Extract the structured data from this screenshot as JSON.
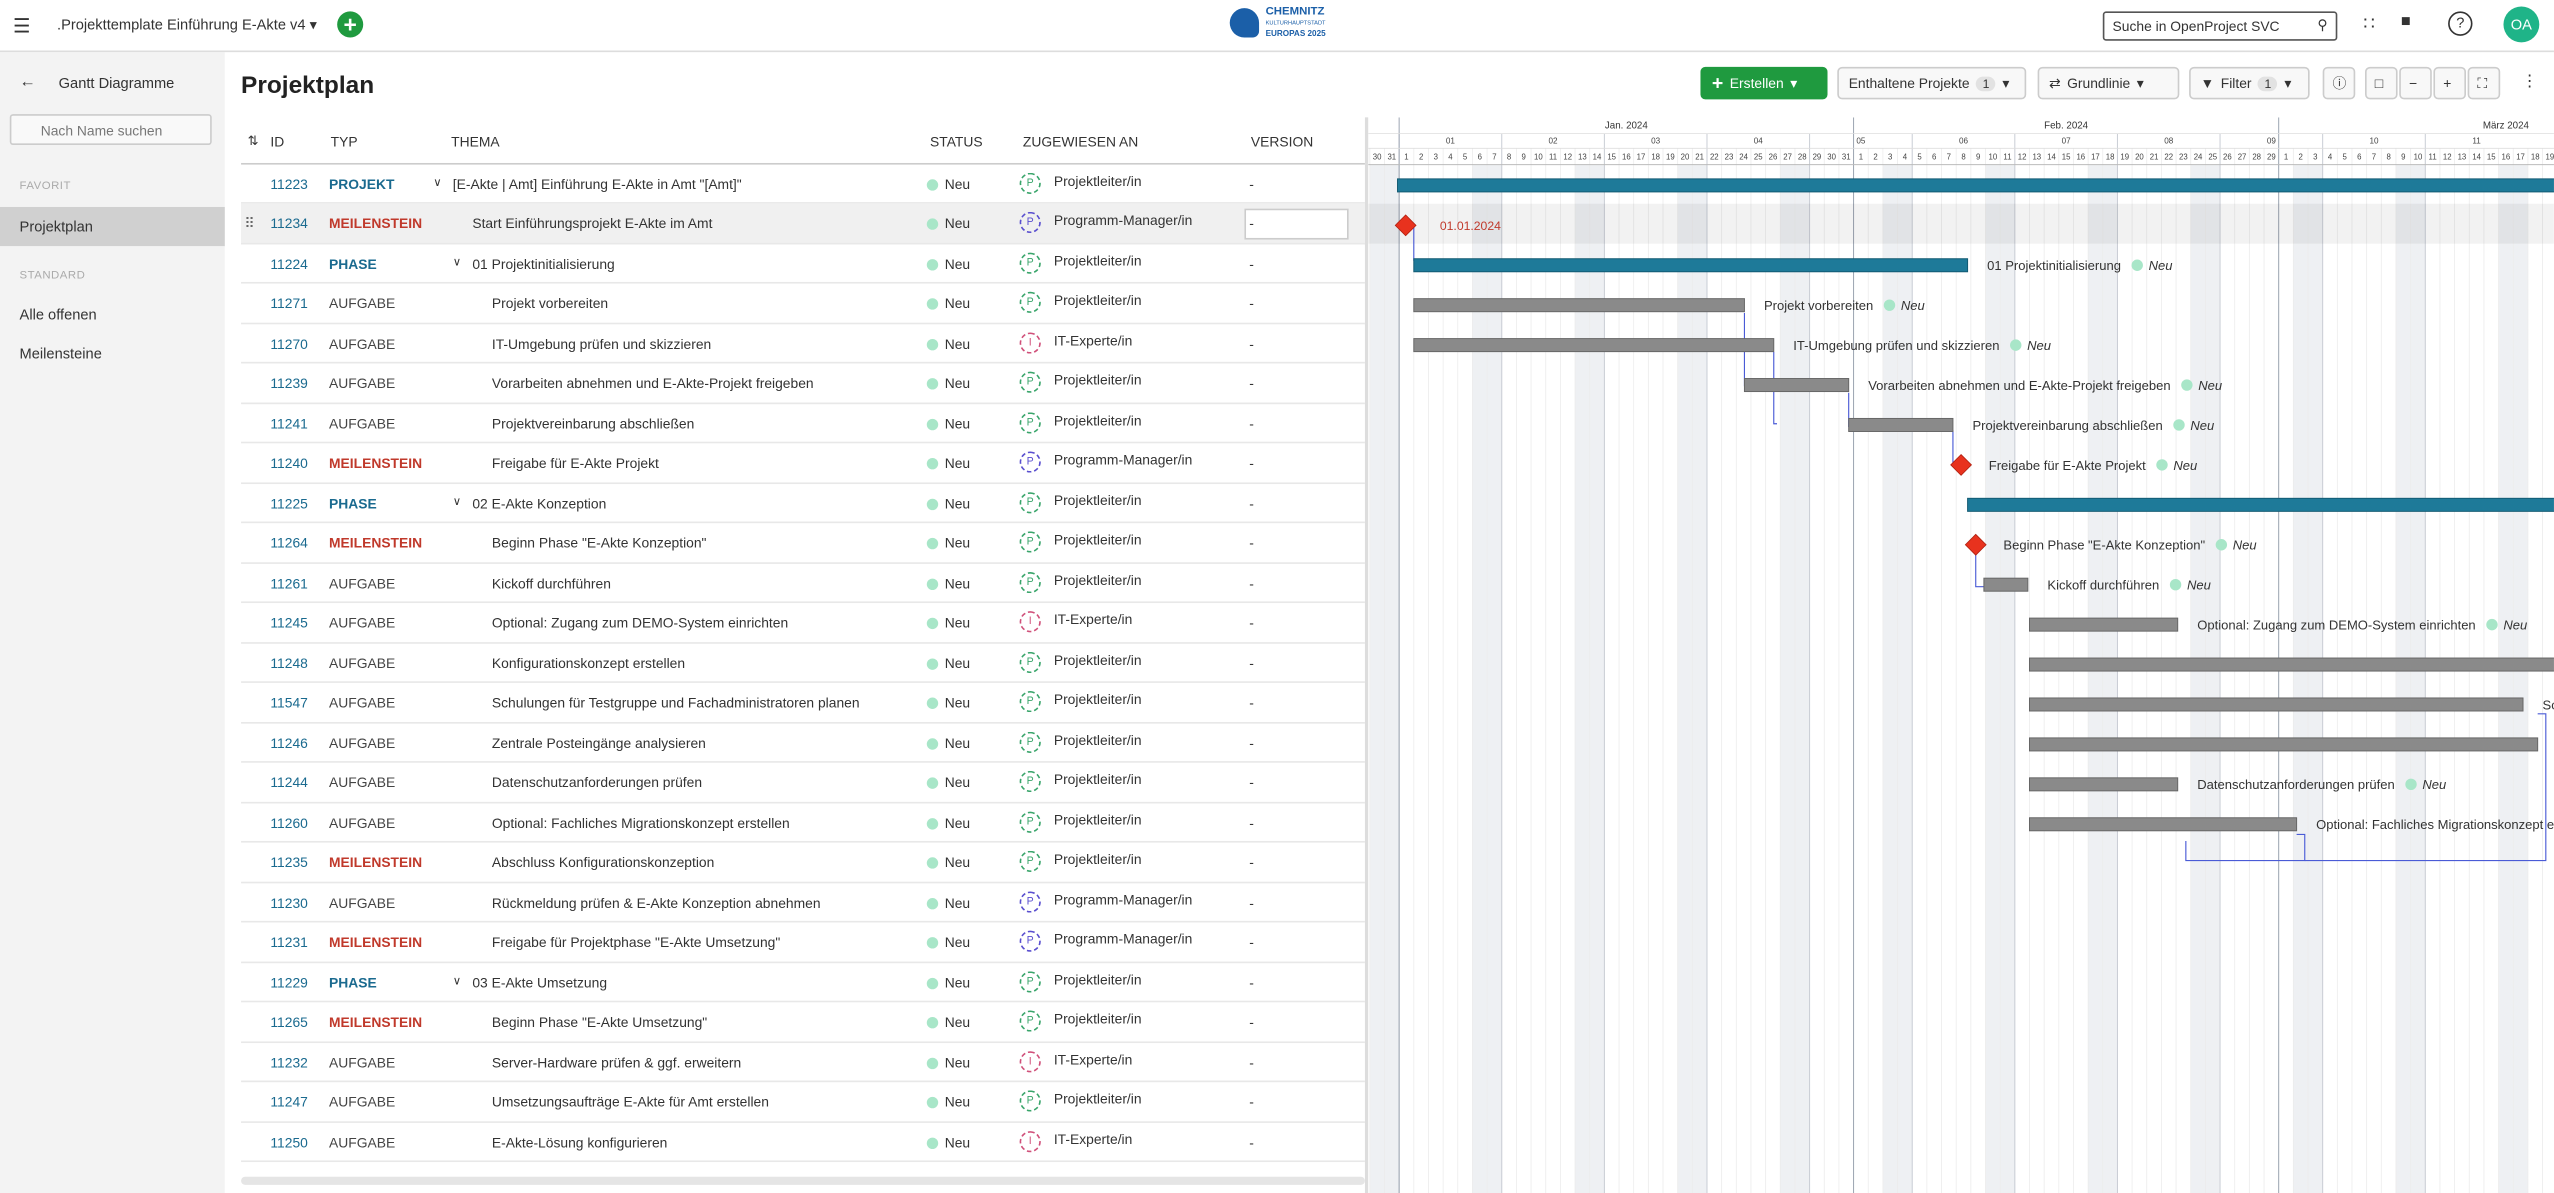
{
  "header": {
    "project": ".Projekttemplate Einführung E-Akte v4",
    "logo": [
      "CHEMNITZ",
      "KULTURHAUPTSTADT",
      "EUROPAS 2025"
    ],
    "search": "Suche in OpenProject SVC",
    "avatar": "OA"
  },
  "sidebar": {
    "title": "Gantt Diagramme",
    "search": "Nach Name suchen",
    "sections": [
      {
        "label": "FAVORIT",
        "items": [
          "Projektplan"
        ]
      },
      {
        "label": "STANDARD",
        "items": [
          "Alle offenen",
          "Meilensteine"
        ]
      }
    ]
  },
  "main": {
    "title": "Projektplan",
    "toolbar": {
      "create": "Erstellen",
      "projects": "Enthaltene Projekte",
      "projects_count": 1,
      "baseline": "Grundlinie",
      "filter": "Filter",
      "filter_count": 1
    }
  },
  "table": {
    "columns": [
      "ID",
      "TYP",
      "THEMA",
      "STATUS",
      "ZUGEWIESEN AN",
      "VERSION"
    ],
    "rows": [
      {
        "id": "11223",
        "type": "PROJEKT",
        "color": "#1a6a8f",
        "subject": "[E-Akte | Amt] Einführung E-Akte in Amt \"[Amt]\"",
        "status": "Neu",
        "avatar": "P",
        "avatar_color": "#3aa56b",
        "assignee": "Projektleiter/in",
        "version": "-"
      },
      {
        "id": "11234",
        "type": "MEILENSTEIN",
        "color": "#c0392b",
        "subject": "Start Einführungsprojekt E-Akte im Amt",
        "status": "Neu",
        "avatar": "P",
        "avatar_color": "#5a4fcf",
        "assignee": "Programm-Manager/in",
        "version": "-"
      },
      {
        "id": "11224",
        "type": "PHASE",
        "color": "#1a6a8f",
        "subject": "01 Projektinitialisierung",
        "status": "Neu",
        "avatar": "P",
        "avatar_color": "#3aa56b",
        "assignee": "Projektleiter/in",
        "version": "-"
      },
      {
        "id": "11271",
        "type": "AUFGABE",
        "color": "#444444",
        "subject": "Projekt vorbereiten",
        "status": "Neu",
        "avatar": "P",
        "avatar_color": "#3aa56b",
        "assignee": "Projektleiter/in",
        "version": "-"
      },
      {
        "id": "11270",
        "type": "AUFGABE",
        "color": "#444444",
        "subject": "IT-Umgebung prüfen und skizzieren",
        "status": "Neu",
        "avatar": "I",
        "avatar_color": "#d0507a",
        "assignee": "IT-Experte/in",
        "version": "-"
      },
      {
        "id": "11239",
        "type": "AUFGABE",
        "color": "#444444",
        "subject": "Vorarbeiten abnehmen und E-Akte-Projekt freigeben",
        "status": "Neu",
        "avatar": "P",
        "avatar_color": "#3aa56b",
        "assignee": "Projektleiter/in",
        "version": "-"
      },
      {
        "id": "11241",
        "type": "AUFGABE",
        "color": "#444444",
        "subject": "Projektvereinbarung abschließen",
        "status": "Neu",
        "avatar": "P",
        "avatar_color": "#3aa56b",
        "assignee": "Projektleiter/in",
        "version": "-"
      },
      {
        "id": "11240",
        "type": "MEILENSTEIN",
        "color": "#c0392b",
        "subject": "Freigabe für E-Akte Projekt",
        "status": "Neu",
        "avatar": "P",
        "avatar_color": "#5a4fcf",
        "assignee": "Programm-Manager/in",
        "version": "-"
      },
      {
        "id": "11225",
        "type": "PHASE",
        "color": "#1a6a8f",
        "subject": "02 E-Akte Konzeption",
        "status": "Neu",
        "avatar": "P",
        "avatar_color": "#3aa56b",
        "assignee": "Projektleiter/in",
        "version": "-"
      },
      {
        "id": "11264",
        "type": "MEILENSTEIN",
        "color": "#c0392b",
        "subject": "Beginn Phase \"E-Akte Konzeption\"",
        "status": "Neu",
        "avatar": "P",
        "avatar_color": "#3aa56b",
        "assignee": "Projektleiter/in",
        "version": "-"
      },
      {
        "id": "11261",
        "type": "AUFGABE",
        "color": "#444444",
        "subject": "Kickoff durchführen",
        "status": "Neu",
        "avatar": "P",
        "avatar_color": "#3aa56b",
        "assignee": "Projektleiter/in",
        "version": "-"
      },
      {
        "id": "11245",
        "type": "AUFGABE",
        "color": "#444444",
        "subject": "Optional: Zugang zum DEMO-System einrichten",
        "status": "Neu",
        "avatar": "I",
        "avatar_color": "#d0507a",
        "assignee": "IT-Experte/in",
        "version": "-"
      },
      {
        "id": "11248",
        "type": "AUFGABE",
        "color": "#444444",
        "subject": "Konfigurationskonzept erstellen",
        "status": "Neu",
        "avatar": "P",
        "avatar_color": "#3aa56b",
        "assignee": "Projektleiter/in",
        "version": "-"
      },
      {
        "id": "11547",
        "type": "AUFGABE",
        "color": "#444444",
        "subject": "Schulungen für Testgruppe und Fachadministratoren planen",
        "status": "Neu",
        "avatar": "P",
        "avatar_color": "#3aa56b",
        "assignee": "Projektleiter/in",
        "version": "-"
      },
      {
        "id": "11246",
        "type": "AUFGABE",
        "color": "#444444",
        "subject": "Zentrale Posteingänge analysieren",
        "status": "Neu",
        "avatar": "P",
        "avatar_color": "#3aa56b",
        "assignee": "Projektleiter/in",
        "version": "-"
      },
      {
        "id": "11244",
        "type": "AUFGABE",
        "color": "#444444",
        "subject": "Datenschutzanforderungen prüfen",
        "status": "Neu",
        "avatar": "P",
        "avatar_color": "#3aa56b",
        "assignee": "Projektleiter/in",
        "version": "-"
      },
      {
        "id": "11260",
        "type": "AUFGABE",
        "color": "#444444",
        "subject": "Optional: Fachliches Migrationskonzept erstellen",
        "status": "Neu",
        "avatar": "P",
        "avatar_color": "#3aa56b",
        "assignee": "Projektleiter/in",
        "version": "-"
      },
      {
        "id": "11235",
        "type": "MEILENSTEIN",
        "color": "#c0392b",
        "subject": "Abschluss Konfigurationskonzeption",
        "status": "Neu",
        "avatar": "P",
        "avatar_color": "#3aa56b",
        "assignee": "Projektleiter/in",
        "version": "-"
      },
      {
        "id": "11230",
        "type": "AUFGABE",
        "color": "#444444",
        "subject": "Rückmeldung prüfen & E-Akte Konzeption abnehmen",
        "status": "Neu",
        "avatar": "P",
        "avatar_color": "#5a4fcf",
        "assignee": "Programm-Manager/in",
        "version": "-"
      },
      {
        "id": "11231",
        "type": "MEILENSTEIN",
        "color": "#c0392b",
        "subject": "Freigabe für Projektphase \"E-Akte Umsetzung\"",
        "status": "Neu",
        "avatar": "P",
        "avatar_color": "#5a4fcf",
        "assignee": "Programm-Manager/in",
        "version": "-"
      },
      {
        "id": "11229",
        "type": "PHASE",
        "color": "#1a6a8f",
        "subject": "03 E-Akte Umsetzung",
        "status": "Neu",
        "avatar": "P",
        "avatar_color": "#3aa56b",
        "assignee": "Projektleiter/in",
        "version": "-"
      },
      {
        "id": "11265",
        "type": "MEILENSTEIN",
        "color": "#c0392b",
        "subject": "Beginn Phase \"E-Akte Umsetzung\"",
        "status": "Neu",
        "avatar": "P",
        "avatar_color": "#3aa56b",
        "assignee": "Projektleiter/in",
        "version": "-"
      },
      {
        "id": "11232",
        "type": "AUFGABE",
        "color": "#444444",
        "subject": "Server-Hardware prüfen & ggf. erweitern",
        "status": "Neu",
        "avatar": "I",
        "avatar_color": "#d0507a",
        "assignee": "IT-Experte/in",
        "version": "-"
      },
      {
        "id": "11247",
        "type": "AUFGABE",
        "color": "#444444",
        "subject": "Umsetzungsaufträge E-Akte für Amt erstellen",
        "status": "Neu",
        "avatar": "P",
        "avatar_color": "#3aa56b",
        "assignee": "Projektleiter/in",
        "version": "-"
      },
      {
        "id": "11250",
        "type": "AUFGABE",
        "color": "#444444",
        "subject": "E-Akte-Lösung konfigurieren",
        "status": "Neu",
        "avatar": "I",
        "avatar_color": "#d0507a",
        "assignee": "IT-Experte/in",
        "version": "-"
      }
    ]
  },
  "gantt": {
    "months": [
      "Jan. 2024",
      "Feb. 2024",
      "März 2024"
    ],
    "weeks": [
      "01",
      "02",
      "03",
      "04",
      "05",
      "06",
      "07",
      "08",
      "09",
      "10",
      "11"
    ],
    "days": [
      "30",
      "31",
      "1",
      "2",
      "3",
      "4",
      "5",
      "6",
      "7",
      "8",
      "9",
      "10",
      "11",
      "12",
      "13",
      "14",
      "15",
      "16",
      "17",
      "18",
      "19",
      "20",
      "21",
      "22",
      "23",
      "24",
      "25",
      "26",
      "27",
      "28",
      "29",
      "30",
      "31",
      "1",
      "2",
      "3",
      "4",
      "5",
      "6",
      "7",
      "8",
      "9",
      "10",
      "11",
      "12",
      "13",
      "14",
      "15",
      "16",
      "17",
      "18",
      "19",
      "20",
      "21",
      "22",
      "23",
      "24",
      "25",
      "26",
      "27",
      "28",
      "29",
      "1",
      "2",
      "3",
      "4",
      "5",
      "6",
      "7",
      "8",
      "9",
      "10",
      "11",
      "12",
      "13",
      "14",
      "15",
      "16",
      "17",
      "18",
      "19"
    ],
    "milestone_date": "01.01.2024"
  }
}
